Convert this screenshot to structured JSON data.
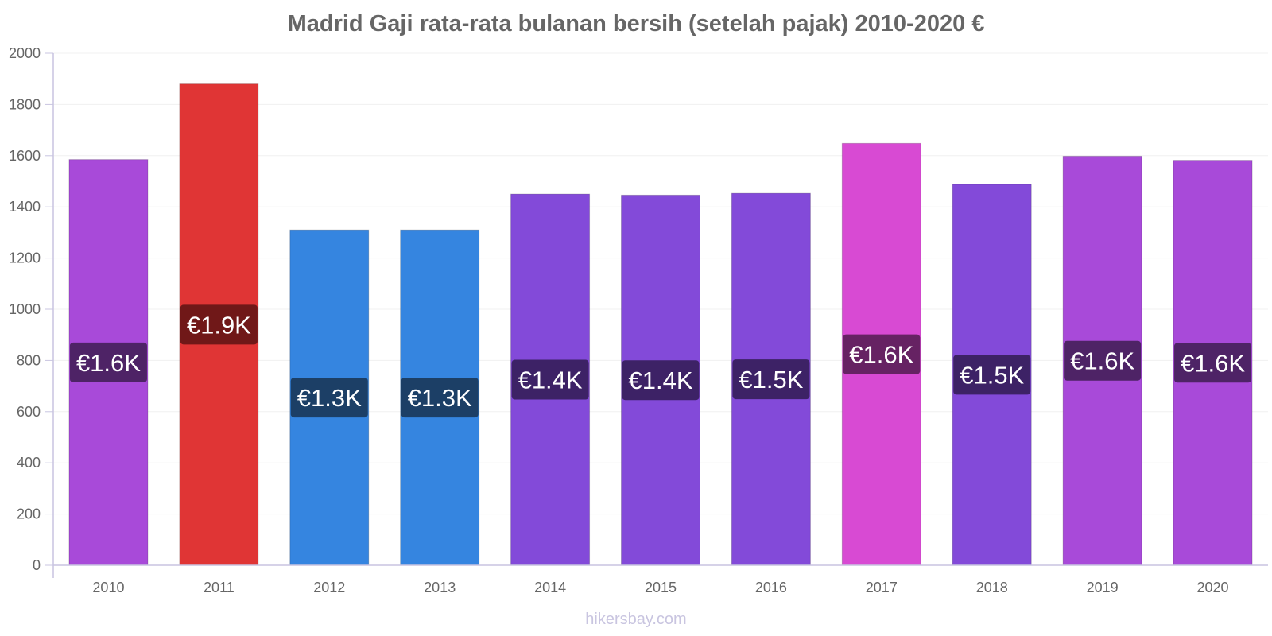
{
  "chart_data": {
    "type": "bar",
    "title": "Madrid Gaji rata-rata bulanan bersih (setelah pajak) 2010-2020 €",
    "xlabel": "",
    "ylabel": "",
    "ylim": [
      0,
      2000
    ],
    "yticks": [
      0,
      200,
      400,
      600,
      800,
      1000,
      1200,
      1400,
      1600,
      1800,
      2000
    ],
    "categories": [
      "2010",
      "2011",
      "2012",
      "2013",
      "2014",
      "2015",
      "2016",
      "2017",
      "2018",
      "2019",
      "2020"
    ],
    "values": [
      1585,
      1880,
      1310,
      1310,
      1450,
      1446,
      1453,
      1648,
      1488,
      1598,
      1582
    ],
    "data_labels": [
      "€1.6K",
      "€1.9K",
      "€1.3K",
      "€1.3K",
      "€1.4K",
      "€1.4K",
      "€1.5K",
      "€1.6K",
      "€1.5K",
      "€1.6K",
      "€1.6K"
    ],
    "bar_colors": [
      "#a84ad9",
      "#e03535",
      "#3585e0",
      "#3585e0",
      "#834ad9",
      "#834ad9",
      "#834ad9",
      "#d84ad3",
      "#834ad9",
      "#a84ad9",
      "#a84ad9"
    ],
    "label_bg_colors": [
      "#4e2366",
      "#701818",
      "#1c3f66",
      "#1c3f66",
      "#3d2266",
      "#3d2266",
      "#3d2266",
      "#662263",
      "#3d2266",
      "#4e2366",
      "#4e2366"
    ],
    "grid": true,
    "legend": "none"
  },
  "watermark": "hikersbay.com"
}
